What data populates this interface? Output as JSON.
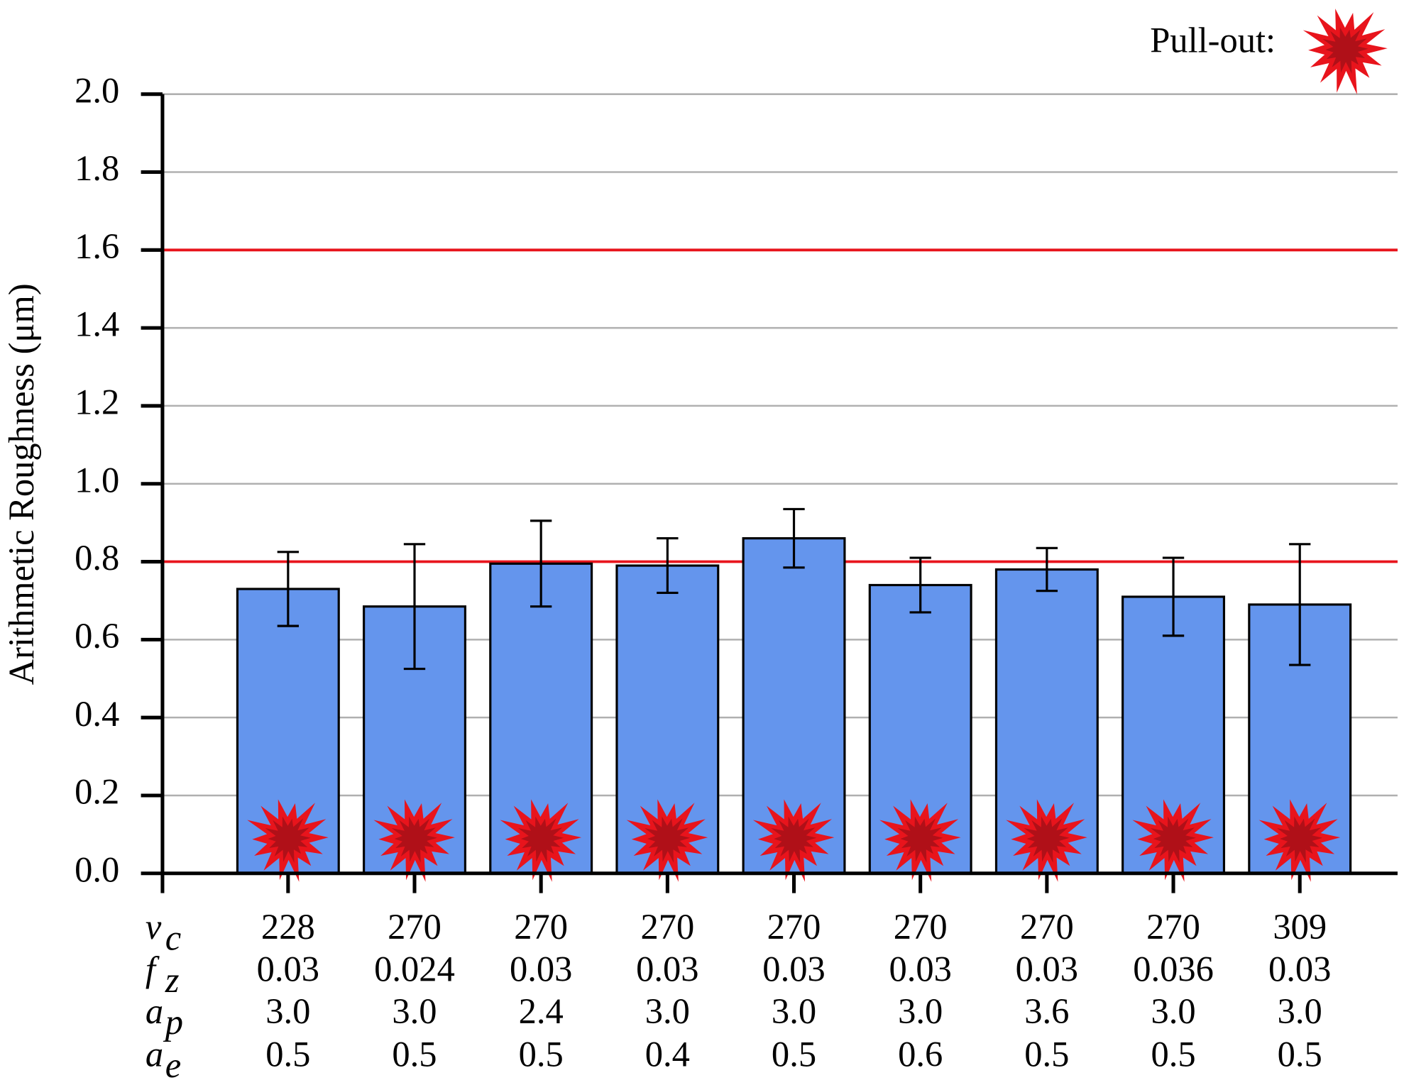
{
  "chart_data": {
    "type": "bar",
    "y_label": "Arithmetic Roughness (μm)",
    "legend_label": "Pull-out:",
    "color": "#6495ed",
    "values": [
      0.73,
      0.685,
      0.795,
      0.79,
      0.86,
      0.74,
      0.78,
      0.71,
      0.69
    ],
    "errors": [
      0.095,
      0.16,
      0.11,
      0.07,
      0.075,
      0.07,
      0.055,
      0.1,
      0.155
    ],
    "ylim": [
      0,
      2
    ],
    "yticks": [
      {
        "value": 0,
        "label": "0.0"
      },
      {
        "value": 0.2,
        "label": "0.2"
      },
      {
        "value": 0.4,
        "label": "0.4"
      },
      {
        "value": 0.6,
        "label": "0.6"
      },
      {
        "value": 0.8,
        "label": "0.8"
      },
      {
        "value": 1,
        "label": "1.0"
      },
      {
        "value": 1.2,
        "label": "1.2"
      },
      {
        "value": 1.4,
        "label": "1.4"
      },
      {
        "value": 1.6,
        "label": "1.6"
      },
      {
        "value": 1.8,
        "label": "1.8"
      },
      {
        "value": 2,
        "label": "2.0"
      }
    ],
    "grid": true,
    "reference_lines": [
      1.6,
      0.8
    ],
    "reference_color": "#e8141c",
    "parameters": [
      {
        "symbol": "v",
        "subscript": "c",
        "values": [
          "228",
          "270",
          "270",
          "270",
          "270",
          "270",
          "270",
          "270",
          "309"
        ]
      },
      {
        "symbol": "f",
        "subscript": "z",
        "values": [
          "0.03",
          "0.024",
          "0.03",
          "0.03",
          "0.03",
          "0.03",
          "0.03",
          "0.036",
          "0.03"
        ]
      },
      {
        "symbol": "a",
        "subscript": "p",
        "values": [
          "3.0",
          "3.0",
          "2.4",
          "3.0",
          "3.0",
          "3.0",
          "3.6",
          "3.0",
          "3.0"
        ]
      },
      {
        "symbol": "a",
        "subscript": "e",
        "values": [
          "0.5",
          "0.5",
          "0.5",
          "0.4",
          "0.5",
          "0.6",
          "0.5",
          "0.5",
          "0.5"
        ]
      }
    ]
  }
}
